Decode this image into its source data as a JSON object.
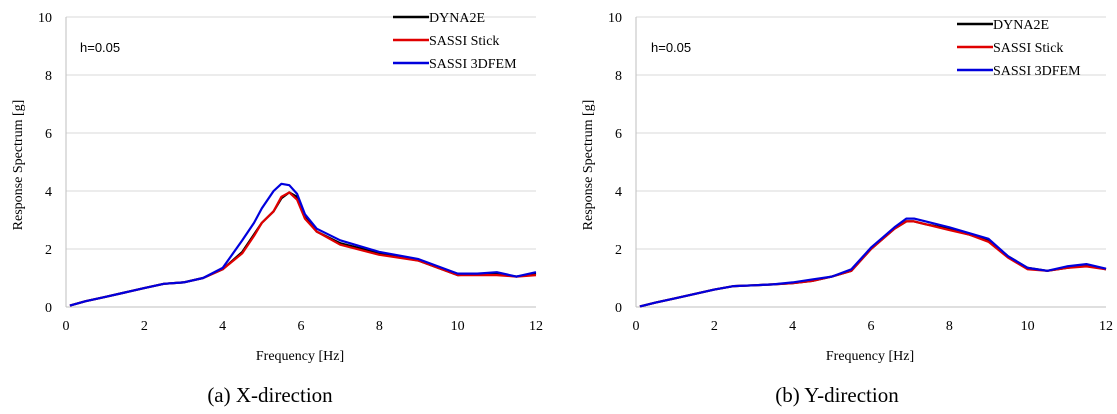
{
  "chart_data": [
    {
      "type": "line",
      "caption": "(a) X-direction",
      "annotation": "h=0.05",
      "xlabel": "Frequency [Hz]",
      "ylabel": "Response Spectrum [g]",
      "xlim": [
        0,
        12
      ],
      "ylim": [
        0,
        10
      ],
      "xticks": [
        "0",
        "2",
        "4",
        "6",
        "8",
        "10",
        "12"
      ],
      "yticks": [
        "0",
        "2",
        "4",
        "6",
        "8",
        "10"
      ],
      "grid": "horizontal",
      "legend_position": "top-right",
      "series": [
        {
          "name": "DYNA2E",
          "color": "#000000",
          "x": [
            0.1,
            0.5,
            1.0,
            1.5,
            2.0,
            2.5,
            3.0,
            3.5,
            4.0,
            4.5,
            4.8,
            5.0,
            5.3,
            5.5,
            5.7,
            5.9,
            6.1,
            6.4,
            7.0,
            8.0,
            9.0,
            9.5,
            10.0,
            10.5,
            11.0,
            11.5,
            12.0
          ],
          "values": [
            0.05,
            0.2,
            0.35,
            0.5,
            0.65,
            0.8,
            0.85,
            1.0,
            1.3,
            1.9,
            2.5,
            2.9,
            3.3,
            3.75,
            3.95,
            3.8,
            3.1,
            2.6,
            2.2,
            1.85,
            1.6,
            1.35,
            1.1,
            1.15,
            1.15,
            1.05,
            1.15
          ]
        },
        {
          "name": "SASSI Stick",
          "color": "#e00000",
          "x": [
            0.1,
            0.5,
            1.0,
            1.5,
            2.0,
            2.5,
            3.0,
            3.5,
            4.0,
            4.5,
            4.8,
            5.0,
            5.3,
            5.5,
            5.7,
            5.9,
            6.1,
            6.4,
            7.0,
            8.0,
            9.0,
            9.5,
            10.0,
            10.5,
            11.0,
            11.5,
            12.0
          ],
          "values": [
            0.05,
            0.2,
            0.35,
            0.5,
            0.65,
            0.8,
            0.85,
            1.0,
            1.3,
            1.85,
            2.45,
            2.9,
            3.3,
            3.8,
            3.95,
            3.7,
            3.05,
            2.6,
            2.15,
            1.8,
            1.6,
            1.35,
            1.1,
            1.1,
            1.1,
            1.05,
            1.1
          ]
        },
        {
          "name": "SASSI 3DFEM",
          "color": "#0000dd",
          "x": [
            0.1,
            0.5,
            1.0,
            1.5,
            2.0,
            2.5,
            3.0,
            3.5,
            4.0,
            4.5,
            4.8,
            5.0,
            5.3,
            5.5,
            5.7,
            5.9,
            6.1,
            6.4,
            7.0,
            8.0,
            9.0,
            9.5,
            10.0,
            10.5,
            11.0,
            11.5,
            12.0
          ],
          "values": [
            0.05,
            0.2,
            0.35,
            0.5,
            0.65,
            0.8,
            0.85,
            1.0,
            1.35,
            2.3,
            2.9,
            3.4,
            4.0,
            4.25,
            4.2,
            3.9,
            3.2,
            2.7,
            2.3,
            1.9,
            1.65,
            1.4,
            1.15,
            1.15,
            1.2,
            1.05,
            1.2
          ]
        }
      ]
    },
    {
      "type": "line",
      "caption": "(b) Y-direction",
      "annotation": "h=0.05",
      "xlabel": "Frequency [Hz]",
      "ylabel": "Response Spectrum [g]",
      "xlim": [
        0,
        12
      ],
      "ylim": [
        0,
        10
      ],
      "xticks": [
        "0",
        "2",
        "4",
        "6",
        "8",
        "10",
        "12"
      ],
      "yticks": [
        "0",
        "2",
        "4",
        "6",
        "8",
        "10"
      ],
      "grid": "horizontal",
      "legend_position": "top-right",
      "series": [
        {
          "name": "DYNA2E",
          "color": "#000000",
          "x": [
            0.1,
            0.5,
            1.0,
            1.5,
            2.0,
            2.5,
            3.0,
            3.5,
            4.0,
            4.5,
            5.0,
            5.5,
            5.8,
            6.0,
            6.3,
            6.6,
            6.9,
            7.1,
            7.4,
            8.0,
            8.5,
            9.0,
            9.5,
            10.0,
            10.5,
            11.0,
            11.5,
            12.0
          ],
          "values": [
            0.02,
            0.15,
            0.3,
            0.45,
            0.6,
            0.72,
            0.75,
            0.78,
            0.82,
            0.9,
            1.05,
            1.25,
            1.7,
            2.0,
            2.35,
            2.7,
            2.95,
            2.95,
            2.85,
            2.7,
            2.5,
            2.3,
            1.75,
            1.35,
            1.25,
            1.35,
            1.45,
            1.3
          ]
        },
        {
          "name": "SASSI Stick",
          "color": "#e00000",
          "x": [
            0.1,
            0.5,
            1.0,
            1.5,
            2.0,
            2.5,
            3.0,
            3.5,
            4.0,
            4.5,
            5.0,
            5.5,
            5.8,
            6.0,
            6.3,
            6.6,
            6.9,
            7.1,
            7.4,
            8.0,
            8.5,
            9.0,
            9.5,
            10.0,
            10.5,
            11.0,
            11.5,
            12.0
          ],
          "values": [
            0.02,
            0.15,
            0.3,
            0.45,
            0.6,
            0.72,
            0.75,
            0.78,
            0.82,
            0.9,
            1.05,
            1.25,
            1.7,
            2.0,
            2.35,
            2.7,
            2.95,
            2.95,
            2.85,
            2.65,
            2.5,
            2.25,
            1.7,
            1.3,
            1.25,
            1.35,
            1.4,
            1.3
          ]
        },
        {
          "name": "SASSI 3DFEM",
          "color": "#0000dd",
          "x": [
            0.1,
            0.5,
            1.0,
            1.5,
            2.0,
            2.5,
            3.0,
            3.5,
            4.0,
            4.5,
            5.0,
            5.5,
            5.8,
            6.0,
            6.3,
            6.6,
            6.9,
            7.1,
            7.4,
            8.0,
            8.5,
            9.0,
            9.5,
            10.0,
            10.5,
            11.0,
            11.5,
            12.0
          ],
          "values": [
            0.02,
            0.15,
            0.3,
            0.45,
            0.6,
            0.72,
            0.75,
            0.78,
            0.85,
            0.95,
            1.05,
            1.3,
            1.75,
            2.05,
            2.4,
            2.75,
            3.05,
            3.05,
            2.95,
            2.75,
            2.55,
            2.35,
            1.75,
            1.35,
            1.25,
            1.4,
            1.48,
            1.32
          ]
        }
      ]
    }
  ]
}
